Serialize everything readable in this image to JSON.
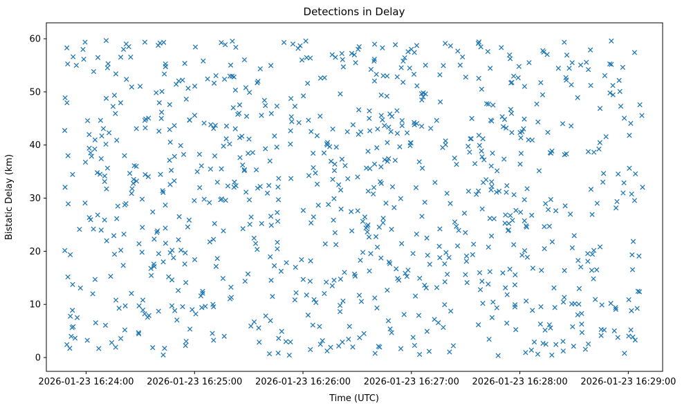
{
  "chart_data": {
    "type": "scatter",
    "title": "Detections in Delay",
    "xlabel": "Time (UTC)",
    "ylabel": "Bistatic Delay (km)",
    "marker": "x",
    "marker_color": "#1f77b4",
    "grid": false,
    "legend": "none",
    "x_tick_labels": [
      "2026-01-23 16:24:00",
      "2026-01-23 16:25:00",
      "2026-01-23 16:26:00",
      "2026-01-23 16:27:00",
      "2026-01-23 16:28:00",
      "2026-01-23 16:29:00"
    ],
    "y_tick_values": [
      0,
      10,
      20,
      30,
      40,
      50,
      60
    ],
    "x_axis_seconds": {
      "domain": [
        0,
        341
      ],
      "ticks": [
        22,
        82,
        142,
        202,
        262,
        322
      ],
      "tick_interval_seconds": 60
    },
    "y_axis": {
      "domain": [
        -2.6,
        63.0
      ],
      "data_range_km": [
        0,
        60
      ]
    },
    "points_generation": {
      "distribution": "uniform",
      "seed": 7,
      "count": 900,
      "x_seconds_range": [
        10,
        330
      ],
      "y_km_range": [
        0.3,
        59.7
      ]
    }
  }
}
